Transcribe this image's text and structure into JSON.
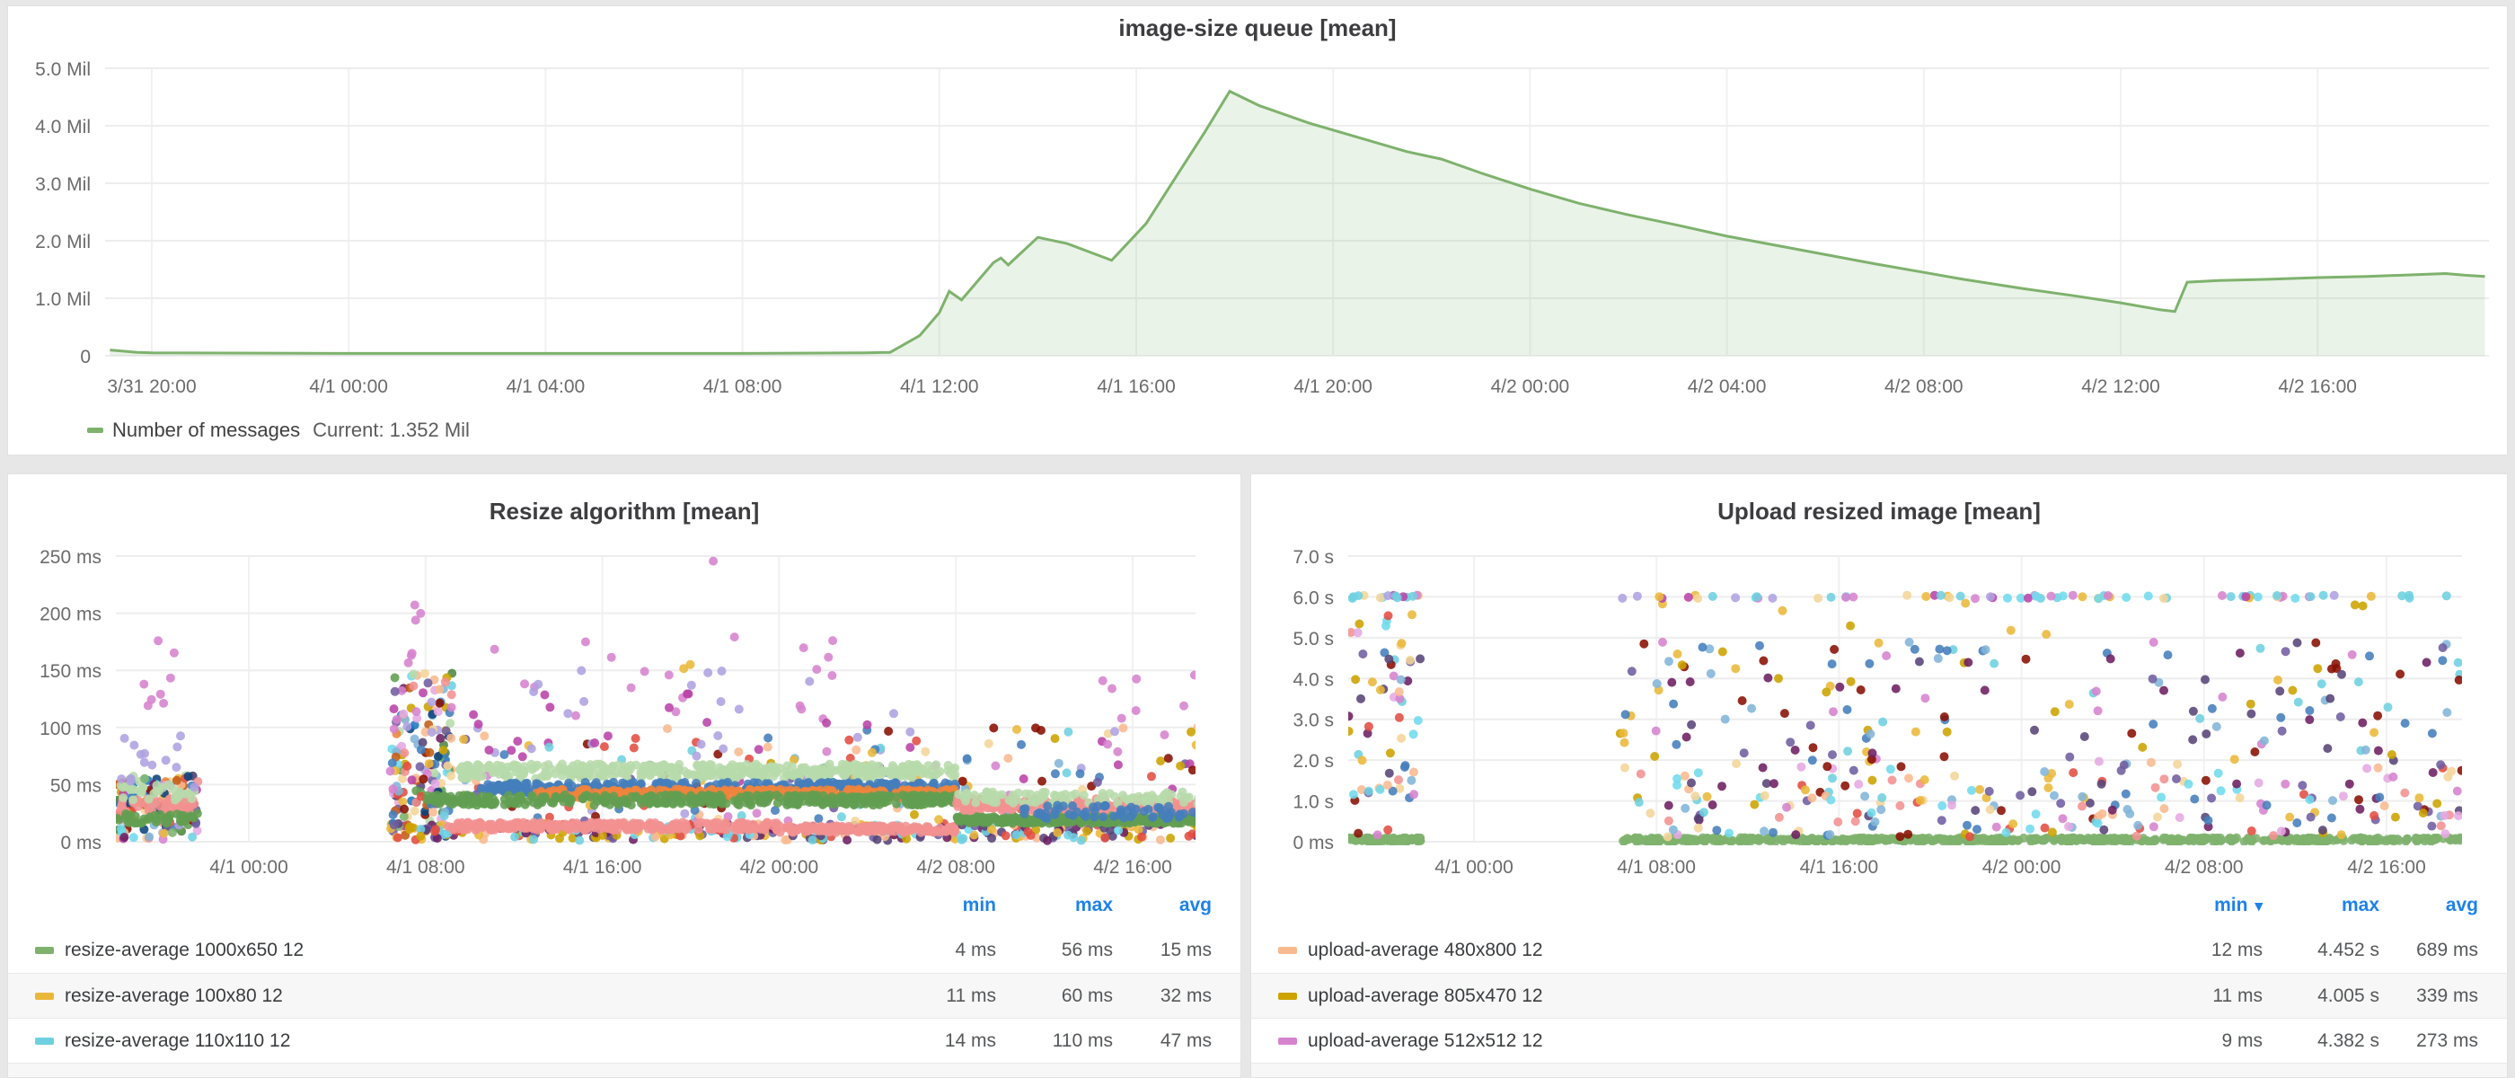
{
  "queue_panel": {
    "title": "image-size queue [mean]",
    "legend": {
      "label": "Number of messages",
      "current": "Current: 1.352 Mil",
      "swatch_color": "#7EB26D"
    },
    "chart_data": {
      "type": "area",
      "title": "image-size queue [mean]",
      "ylabel": "messages",
      "ylim": [
        0,
        5000000
      ],
      "line_color": "#7EB26D",
      "fill_opacity": 0.16,
      "y_ticks": [
        {
          "v": 0,
          "label": "0"
        },
        {
          "v": 1,
          "label": "1.0 Mil"
        },
        {
          "v": 2,
          "label": "2.0 Mil"
        },
        {
          "v": 3,
          "label": "3.0 Mil"
        },
        {
          "v": 4,
          "label": "4.0 Mil"
        },
        {
          "v": 5,
          "label": "5.0 Mil"
        }
      ],
      "x_ticks": [
        {
          "h": 0,
          "label": "3/31 20:00"
        },
        {
          "h": 4,
          "label": "4/1 00:00"
        },
        {
          "h": 8,
          "label": "4/1 04:00"
        },
        {
          "h": 12,
          "label": "4/1 08:00"
        },
        {
          "h": 16,
          "label": "4/1 12:00"
        },
        {
          "h": 20,
          "label": "4/1 16:00"
        },
        {
          "h": 24,
          "label": "4/1 20:00"
        },
        {
          "h": 28,
          "label": "4/2 00:00"
        },
        {
          "h": 32,
          "label": "4/2 04:00"
        },
        {
          "h": 36,
          "label": "4/2 08:00"
        },
        {
          "h": 40,
          "label": "4/2 12:00"
        },
        {
          "h": 44,
          "label": "4/2 16:00"
        }
      ],
      "points_mil": [
        [
          -0.85,
          0.1
        ],
        [
          -0.3,
          0.06
        ],
        [
          0,
          0.05
        ],
        [
          4,
          0.04
        ],
        [
          8,
          0.04
        ],
        [
          12,
          0.04
        ],
        [
          14.5,
          0.05
        ],
        [
          15.0,
          0.06
        ],
        [
          15.6,
          0.35
        ],
        [
          16.0,
          0.75
        ],
        [
          16.2,
          1.12
        ],
        [
          16.45,
          0.97
        ],
        [
          17.1,
          1.62
        ],
        [
          17.25,
          1.7
        ],
        [
          17.4,
          1.58
        ],
        [
          18.0,
          2.06
        ],
        [
          18.6,
          1.95
        ],
        [
          19.5,
          1.66
        ],
        [
          20.2,
          2.3
        ],
        [
          20.8,
          3.1
        ],
        [
          21.4,
          3.9
        ],
        [
          21.9,
          4.6
        ],
        [
          22.5,
          4.35
        ],
        [
          23.5,
          4.05
        ],
        [
          24.5,
          3.8
        ],
        [
          25.5,
          3.55
        ],
        [
          26.2,
          3.42
        ],
        [
          27.0,
          3.18
        ],
        [
          28.0,
          2.9
        ],
        [
          29.0,
          2.65
        ],
        [
          30.0,
          2.45
        ],
        [
          31.0,
          2.27
        ],
        [
          32.0,
          2.08
        ],
        [
          33.0,
          1.92
        ],
        [
          34.0,
          1.76
        ],
        [
          35.0,
          1.6
        ],
        [
          36.0,
          1.45
        ],
        [
          36.8,
          1.33
        ],
        [
          38.0,
          1.17
        ],
        [
          39.0,
          1.05
        ],
        [
          40.0,
          0.92
        ],
        [
          40.8,
          0.8
        ],
        [
          41.1,
          0.77
        ],
        [
          41.35,
          1.28
        ],
        [
          42.0,
          1.31
        ],
        [
          43.0,
          1.33
        ],
        [
          44.0,
          1.36
        ],
        [
          45.0,
          1.38
        ],
        [
          46.0,
          1.41
        ],
        [
          46.6,
          1.43
        ],
        [
          47.0,
          1.4
        ],
        [
          47.4,
          1.38
        ]
      ],
      "current_value": "1.352 Mil"
    }
  },
  "resize_panel": {
    "title": "Resize algorithm [mean]",
    "legend_header": {
      "min": "min",
      "max": "max",
      "avg": "avg"
    },
    "legend_rows": [
      {
        "color": "#7EB26D",
        "label": "resize-average 1000x650 12",
        "min": "4 ms",
        "max": "56 ms",
        "avg": "15 ms"
      },
      {
        "color": "#EAB839",
        "label": "resize-average 100x80 12",
        "min": "11 ms",
        "max": "60 ms",
        "avg": "32 ms"
      },
      {
        "color": "#6ED0E0",
        "label": "resize-average 110x110 12",
        "min": "14 ms",
        "max": "110 ms",
        "avg": "47 ms"
      }
    ],
    "chart_data": {
      "type": "scatter",
      "title": "Resize algorithm [mean]",
      "y_unit": "ms",
      "ylim": [
        0,
        250
      ],
      "seed": 7,
      "y_ticks": [
        {
          "v": 0,
          "label": "0 ms"
        },
        {
          "v": 50,
          "label": "50 ms"
        },
        {
          "v": 100,
          "label": "100 ms"
        },
        {
          "v": 150,
          "label": "150 ms"
        },
        {
          "v": 200,
          "label": "200 ms"
        },
        {
          "v": 250,
          "label": "250 ms"
        }
      ],
      "x_ticks": [
        {
          "h": 0,
          "label": "4/1 00:00"
        },
        {
          "h": 8,
          "label": "4/1 08:00"
        },
        {
          "h": 16,
          "label": "4/1 16:00"
        },
        {
          "h": 24,
          "label": "4/2 00:00"
        },
        {
          "h": 32,
          "label": "4/2 08:00"
        },
        {
          "h": 40,
          "label": "4/2 16:00"
        }
      ],
      "palette_mix": [
        "#EAB839",
        "#6ED0E0",
        "#EF843C",
        "#E24D42",
        "#1F78C1",
        "#BA43A9",
        "#705DA0",
        "#508642",
        "#CCA300",
        "#447EBC",
        "#C15C17",
        "#890F02",
        "#0A437C",
        "#6D1F62",
        "#584477",
        "#B7DBAB",
        "#F4D598",
        "#70DBED",
        "#F9BA8F",
        "#F29191",
        "#82B5D8",
        "#E5A8E2",
        "#AEA2E0",
        "#629E51",
        "#D683CE",
        "#7EB26D"
      ],
      "palette_low": [
        "#6ED0E0",
        "#EAB839",
        "#6D1F62",
        "#705DA0",
        "#70DBED",
        "#584477",
        "#CCA300",
        "#F9BA8F",
        "#E24D42"
      ],
      "palette_mid": [
        "#EAB839",
        "#E24D42",
        "#890F02",
        "#F4D598",
        "#6ED0E0",
        "#AEA2E0",
        "#BA43A9",
        "#F9BA8F",
        "#CCA300",
        "#82B5D8",
        "#D683CE",
        "#705DA0",
        "#447EBC"
      ],
      "clusters": [
        {
          "colors": "mix",
          "h": [
            -6.0,
            -2.3
          ],
          "y": [
            2,
            58
          ],
          "n": 130
        },
        {
          "color": "#F29191",
          "h": [
            -6.0,
            -2.3
          ],
          "y": [
            26,
            38
          ],
          "n": 40
        },
        {
          "color": "#629E51",
          "h": [
            -6.0,
            -2.3
          ],
          "y": [
            16,
            25
          ],
          "n": 40
        },
        {
          "color": "#B7DBAB",
          "h": [
            -6.0,
            -2.3
          ],
          "y": [
            36,
            50
          ],
          "n": 28
        },
        {
          "color": "#AEA2E0",
          "h": [
            -5.8,
            -2.4
          ],
          "y": [
            45,
            100
          ],
          "n": 14
        },
        {
          "color": "#D683CE",
          "h": [
            -5.2,
            -3.3
          ],
          "y": [
            118,
            178
          ],
          "n": 8
        },
        {
          "colors": "mix",
          "h": [
            6.4,
            9.2
          ],
          "y": [
            2,
            148
          ],
          "n": 150
        },
        {
          "colors": "low",
          "h": [
            6.4,
            43.0
          ],
          "y": [
            1,
            16
          ],
          "n": 300
        },
        {
          "colors": "mid",
          "h": [
            6.4,
            43.0
          ],
          "y": [
            18,
            100
          ],
          "n": 230
        },
        {
          "color": "#B7DBAB",
          "h": [
            9.5,
            32
          ],
          "y": [
            55,
            68
          ],
          "n": 420
        },
        {
          "color": "#447EBC",
          "h": [
            10.5,
            32
          ],
          "y": [
            43,
            52
          ],
          "n": 400
        },
        {
          "color": "#EF843C",
          "h": [
            13,
            32
          ],
          "y": [
            38,
            46
          ],
          "n": 360
        },
        {
          "color": "#629E51",
          "h": [
            8,
            32
          ],
          "y": [
            32,
            41
          ],
          "n": 400
        },
        {
          "color": "#F29191",
          "h": [
            9,
            24
          ],
          "y": [
            10,
            17
          ],
          "n": 280
        },
        {
          "color": "#F29191",
          "h": [
            24,
            32
          ],
          "y": [
            8,
            14
          ],
          "n": 160
        },
        {
          "color": "#629E51",
          "h": [
            32,
            43.0
          ],
          "y": [
            16,
            23
          ],
          "n": 280
        },
        {
          "color": "#F29191",
          "h": [
            32,
            43.0
          ],
          "y": [
            27,
            38
          ],
          "n": 240
        },
        {
          "color": "#B7DBAB",
          "h": [
            32,
            43.0
          ],
          "y": [
            33,
            44
          ],
          "n": 90
        },
        {
          "color": "#447EBC",
          "h": [
            35,
            43.0
          ],
          "y": [
            20,
            32
          ],
          "n": 60
        },
        {
          "color": "#D683CE",
          "h": [
            6.5,
            27
          ],
          "y": [
            105,
            180
          ],
          "n": 26
        },
        {
          "color": "#AEA2E0",
          "h": [
            6.5,
            30
          ],
          "y": [
            80,
            150
          ],
          "n": 20
        },
        {
          "color": "#BA43A9",
          "h": [
            8,
            30
          ],
          "y": [
            60,
            130
          ],
          "n": 14
        },
        {
          "color": "#D683CE",
          "h": [
            7.2,
            7.9
          ],
          "y": [
            188,
            208
          ],
          "n": 3
        },
        {
          "color": "#D683CE",
          "h": [
            20.9,
            21.1
          ],
          "y": [
            244,
            246
          ],
          "n": 1
        },
        {
          "color": "#D683CE",
          "h": [
            38.5,
            43.0
          ],
          "y": [
            70,
            158
          ],
          "n": 9
        },
        {
          "color": "#EAB839",
          "h": [
            19.6,
            20.2
          ],
          "y": [
            148,
            165
          ],
          "n": 2
        }
      ]
    }
  },
  "upload_panel": {
    "title": "Upload resized image [mean]",
    "legend_header": {
      "min": "min",
      "max": "max",
      "avg": "avg",
      "sort_caret": "▾"
    },
    "legend_rows": [
      {
        "color": "#F9BA8F",
        "label": "upload-average 480x800 12",
        "min": "12 ms",
        "max": "4.452 s",
        "avg": "689 ms"
      },
      {
        "color": "#CCA300",
        "label": "upload-average 805x470 12",
        "min": "11 ms",
        "max": "4.005 s",
        "avg": "339 ms"
      },
      {
        "color": "#D683CE",
        "label": "upload-average 512x512 12",
        "min": "9 ms",
        "max": "4.382 s",
        "avg": "273 ms"
      }
    ],
    "chart_data": {
      "type": "scatter",
      "title": "Upload resized image [mean]",
      "y_unit": "s",
      "ylim": [
        0,
        7
      ],
      "seed": 11,
      "y_ticks": [
        {
          "v": 0,
          "label": "0 ms"
        },
        {
          "v": 1,
          "label": "1.0 s"
        },
        {
          "v": 2,
          "label": "2.0 s"
        },
        {
          "v": 3,
          "label": "3.0 s"
        },
        {
          "v": 4,
          "label": "4.0 s"
        },
        {
          "v": 5,
          "label": "5.0 s"
        },
        {
          "v": 6,
          "label": "6.0 s"
        },
        {
          "v": 7,
          "label": "7.0 s"
        }
      ],
      "x_ticks": [
        {
          "h": 0,
          "label": "4/1 00:00"
        },
        {
          "h": 8,
          "label": "4/1 08:00"
        },
        {
          "h": 16,
          "label": "4/1 16:00"
        },
        {
          "h": 24,
          "label": "4/2 00:00"
        },
        {
          "h": 32,
          "label": "4/2 08:00"
        },
        {
          "h": 40,
          "label": "4/2 16:00"
        }
      ],
      "palette_up": [
        "#CCA300",
        "#EAB839",
        "#6D1F62",
        "#705DA0",
        "#82B5D8",
        "#447EBC",
        "#70DBED",
        "#F29191",
        "#E24D42",
        "#D683CE",
        "#F9BA8F",
        "#6ED0E0",
        "#584477",
        "#890F02",
        "#F4D598",
        "#E5A8E2"
      ],
      "palette_up2": [
        "#CCA300",
        "#EAB839",
        "#6D1F62",
        "#705DA0",
        "#82B5D8",
        "#447EBC",
        "#D683CE",
        "#584477",
        "#890F02",
        "#6ED0E0"
      ],
      "palette_cap": [
        "#6ED0E0",
        "#6ED0E0",
        "#BA43A9",
        "#EAB839",
        "#AEA2E0",
        "#D683CE",
        "#F4D598",
        "#70DBED"
      ],
      "clusters": [
        {
          "color": "#7EB26D",
          "h": [
            -5.5,
            -2.3
          ],
          "y": [
            0.0,
            0.1
          ],
          "n": 80
        },
        {
          "colors": "up",
          "h": [
            -5.5,
            -2.3
          ],
          "y": [
            0.15,
            5.6
          ],
          "n": 60
        },
        {
          "colors": "cap",
          "h": [
            -5.5,
            -2.4
          ],
          "y": [
            5.96,
            6.04
          ],
          "n": 15
        },
        {
          "color": "#E24D42",
          "h": [
            -3.8,
            -3.7
          ],
          "y": [
            5.5,
            5.55
          ],
          "n": 1
        },
        {
          "color": "#7EB26D",
          "h": [
            6.4,
            43.3
          ],
          "y": [
            0.0,
            0.1
          ],
          "n": 650
        },
        {
          "colors": "up",
          "h": [
            6.4,
            43.3
          ],
          "y": [
            0.12,
            2.0
          ],
          "n": 230
        },
        {
          "colors": "up2",
          "h": [
            6.4,
            43.3
          ],
          "y": [
            2.0,
            4.9
          ],
          "n": 160
        },
        {
          "colors": [
            "#EAB839",
            "#CCA300"
          ],
          "h": [
            6.4,
            43.3
          ],
          "y": [
            5.0,
            5.85
          ],
          "n": 8
        },
        {
          "colors": "cap",
          "h": [
            6.4,
            43.3
          ],
          "y": [
            5.96,
            6.04
          ],
          "n": 70
        }
      ]
    }
  }
}
